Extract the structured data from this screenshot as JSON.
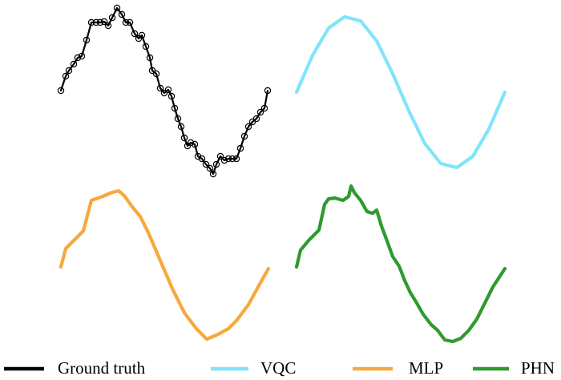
{
  "chart_data": [
    {
      "type": "line",
      "xlim": [
        0,
        260
      ],
      "ylim": [
        -110,
        110
      ],
      "markers": true,
      "x": [
        0,
        6,
        10,
        16,
        21,
        26,
        32,
        38,
        44,
        49,
        54,
        59,
        64,
        70,
        76,
        81,
        86,
        92,
        97,
        101,
        106,
        111,
        114,
        119,
        124,
        129,
        134,
        138,
        142,
        146,
        150,
        154,
        158,
        162,
        167,
        171,
        176,
        181,
        186,
        190,
        194,
        199,
        204,
        209,
        214,
        219,
        224,
        229,
        234,
        239,
        244,
        249,
        254,
        258
      ],
      "series": [
        {
          "name": "Ground truth",
          "color": "#000000",
          "values": [
            2,
            20,
            27,
            35,
            43,
            45,
            65,
            87,
            87,
            87,
            88,
            83,
            93,
            105,
            97,
            87,
            87,
            73,
            67,
            71,
            57,
            43,
            27,
            23,
            5,
            -1,
            3,
            -5,
            -20,
            -33,
            -43,
            -57,
            -67,
            -63,
            -65,
            -80,
            -83,
            -90,
            -95,
            -102,
            -90,
            -80,
            -85,
            -83,
            -83,
            -83,
            -70,
            -55,
            -43,
            -37,
            -33,
            -25,
            -20,
            2
          ]
        }
      ]
    },
    {
      "type": "line",
      "xlim": [
        0,
        260
      ],
      "ylim": [
        -110,
        110
      ],
      "markers": false,
      "x": [
        0,
        20,
        40,
        60,
        80,
        100,
        120,
        140,
        160,
        180,
        200,
        220,
        240,
        260
      ],
      "series": [
        {
          "name": "VQC",
          "color": "#80e5fa",
          "values": [
            0,
            46,
            80,
            94,
            89,
            64,
            23,
            -23,
            -64,
            -89,
            -94,
            -80,
            -46,
            0
          ]
        }
      ]
    },
    {
      "type": "line",
      "xlim": [
        0,
        260
      ],
      "ylim": [
        -110,
        110
      ],
      "markers": false,
      "x": [
        0,
        6,
        16,
        28,
        38,
        52,
        64,
        72,
        79,
        89,
        99,
        109,
        124,
        139,
        154,
        169,
        182,
        194,
        209,
        219,
        234,
        246,
        259
      ],
      "series": [
        {
          "name": "MLP",
          "color": "#f8a83c",
          "values": [
            -3,
            20,
            30,
            42,
            80,
            85,
            90,
            92,
            86,
            72,
            60,
            40,
            5,
            -30,
            -60,
            -80,
            -93,
            -88,
            -80,
            -70,
            -50,
            -28,
            -5
          ]
        }
      ]
    },
    {
      "type": "line",
      "xlim": [
        0,
        260
      ],
      "ylim": [
        -110,
        110
      ],
      "markers": false,
      "x": [
        0,
        5,
        15,
        28,
        35,
        40,
        48,
        58,
        65,
        68,
        72,
        80,
        88,
        95,
        100,
        106,
        112,
        120,
        128,
        135,
        142,
        150,
        158,
        168,
        176,
        185,
        195,
        205,
        215,
        225,
        235,
        245,
        260
      ],
      "series": [
        {
          "name": "PHN",
          "color": "#2f9a2f",
          "values": [
            -3,
            18,
            30,
            43,
            75,
            82,
            83,
            80,
            85,
            98,
            90,
            80,
            66,
            64,
            68,
            48,
            32,
            10,
            -2,
            -20,
            -35,
            -48,
            -62,
            -75,
            -82,
            -94,
            -96,
            -92,
            -82,
            -68,
            -48,
            -28,
            -5
          ]
        }
      ]
    }
  ]
}
